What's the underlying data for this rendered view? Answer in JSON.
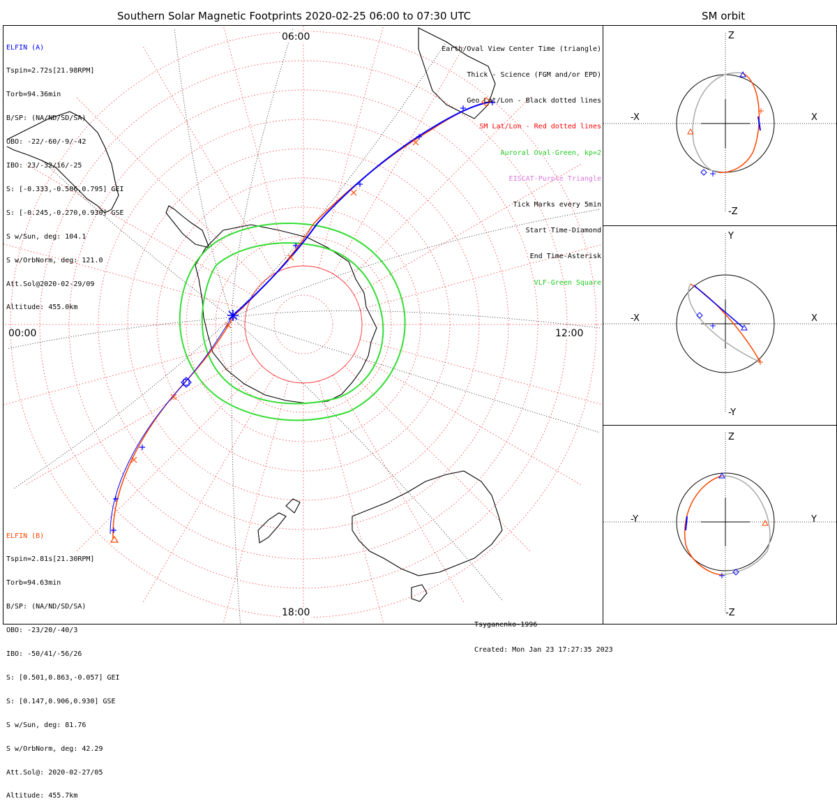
{
  "main_title": "Southern Solar Magnetic Footprints 2020-02-25 06:00 to 07:30 UTC",
  "sm_title": "SM orbit",
  "elfin_a": {
    "name": "ELFIN (A)",
    "color": "#0000ff",
    "lines": [
      "Tspin=2.72s[21.98RPM]",
      "Torb=94.36min",
      "B/SP: (NA/ND/SD/SA)",
      "OBO: -22/-60/-9/-42",
      "IBO: 23/-32/16/-25",
      "S: [-0.333,-0.506,0.795] GEI",
      "S: [-0.245,-0.270,0.930] GSE",
      "S w/Sun, deg: 104.1",
      "S w/OrbNorm, deg: 121.0",
      "Att.Sol@2020-02-29/09",
      "Altitude: 455.0km"
    ]
  },
  "elfin_b": {
    "name": "ELFIN (B)",
    "color": "#ff4500",
    "lines": [
      "Tspin=2.81s[21.30RPM]",
      "Torb=94.63min",
      "B/SP: (NA/ND/SD/SA)",
      "OBO: -23/20/-40/3",
      "IBO: -50/41/-56/26",
      "S: [0.501,0.863,-0.057] GEI",
      "S: [0.147,0.906,0.930] GSE",
      "S w/Sun, deg: 81.76",
      "S w/OrbNorm, deg: 42.29",
      "Att.Sol@: 2020-02-27/05",
      "Altitude: 455.7km"
    ]
  },
  "legend": [
    {
      "text": "Earth/Oval View Center Time (triangle)",
      "color": "#000000"
    },
    {
      "text": "Thick - Science (FGM and/or EPD)",
      "color": "#000000"
    },
    {
      "text": "Geo Lat/Lon - Black dotted lines",
      "color": "#000000"
    },
    {
      "text": "SM Lat/Lon - Red dotted lines",
      "color": "#ff0000"
    },
    {
      "text": "Auroral Oval-Green, kp=2",
      "color": "#22cc22"
    },
    {
      "text": "EISCAT-Purple Triangle",
      "color": "#dd77dd"
    },
    {
      "text": "Tick Marks every 5min",
      "color": "#000000"
    },
    {
      "text": "Start Time-Diamond",
      "color": "#000000"
    },
    {
      "text": "End Time-Asterisk",
      "color": "#000000"
    },
    {
      "text": "VLF-Green Square",
      "color": "#22cc22"
    }
  ],
  "time_labels": {
    "top": "06:00",
    "left": "00:00",
    "right": "12:00",
    "bottom": "18:00"
  },
  "footer": [
    "Tsyganenko-1996",
    "Created: Mon Jan 23 17:27:35 2023"
  ],
  "sm_panels": [
    {
      "top": "Z",
      "bottom": "-Z",
      "left": "-X",
      "right": "X"
    },
    {
      "top": "Y",
      "bottom": "-Y",
      "left": "-X",
      "right": "X"
    },
    {
      "top": "Z",
      "bottom": "-Z",
      "left": "-Y",
      "right": "Y"
    }
  ],
  "colors": {
    "elfin_a": "#0000ff",
    "elfin_b": "#ff4500",
    "oval": "#22cc22",
    "sm_grid": "#ff0000",
    "geo_grid": "#000000",
    "orbit_gray": "#aaaaaa"
  }
}
